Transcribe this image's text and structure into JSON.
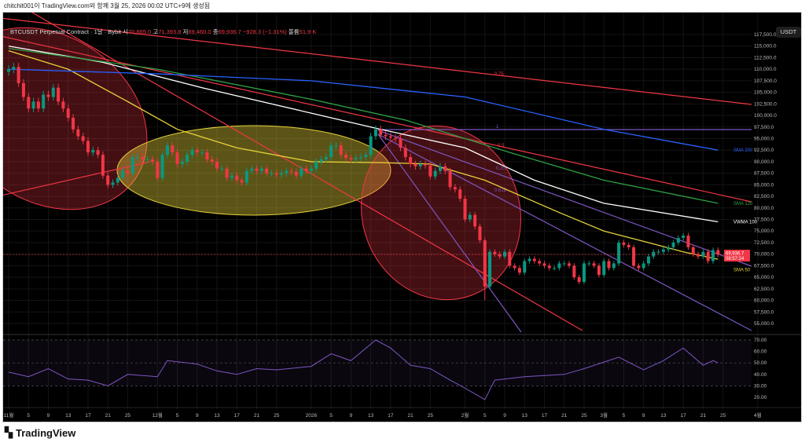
{
  "caption": "chitchit001이 TradingView.com와 함께 3월 25, 2026 00:02 UTC+9에 생성됨",
  "legend": {
    "symbol": "BTCUSDT Perpetual Contract · 1날 · Bybit",
    "open_label": "시",
    "open": "70,865.0",
    "high_label": "고",
    "high": "71,393.8",
    "low_label": "저",
    "low": "69,460.0",
    "close_label": "종",
    "close": "69,936.7",
    "change": "−928.3 (−1.31%)",
    "volume_label": "볼륨",
    "volume": "51.9 K"
  },
  "currency_button": "USDT",
  "last_price": {
    "price": "69,936.7",
    "countdown": "08:57:24"
  },
  "logo": "TradingView",
  "colors": {
    "up": "#089981",
    "down": "#f23645",
    "sma50": "#e6d23a",
    "vwma100": "#ffffff",
    "sma120": "#2ea043",
    "sma200": "#2962ff",
    "rsi": "#7e57c2"
  },
  "chart_data": [
    {
      "type": "candlestick",
      "start_date": "2025-11-01",
      "ylim": [
        52500,
        120000
      ],
      "y_ticks": [
        "117,500.0",
        "115,000.0",
        "112,500.0",
        "110,000.0",
        "107,500.0",
        "105,000.0",
        "102,500.0",
        "100,000.0",
        "97,500.0",
        "95,000.0",
        "92,500.0",
        "90,000.0",
        "87,500.0",
        "85,000.0",
        "82,500.0",
        "80,000.0",
        "77,500.0",
        "75,000.0",
        "72,500.0",
        "70,000.0",
        "67,500.0",
        "65,000.0",
        "62,500.0",
        "60,000.0",
        "57,500.0",
        "55,000.0"
      ],
      "x_ticks": [
        [
          "11월",
          0
        ],
        [
          "5",
          4
        ],
        [
          "9",
          8
        ],
        [
          "13",
          12
        ],
        [
          "17",
          16
        ],
        [
          "21",
          20
        ],
        [
          "25",
          24
        ],
        [
          "12월",
          30
        ],
        [
          "5",
          34
        ],
        [
          "9",
          38
        ],
        [
          "13",
          42
        ],
        [
          "17",
          46
        ],
        [
          "21",
          50
        ],
        [
          "25",
          54
        ],
        [
          "2026",
          61
        ],
        [
          "5",
          65
        ],
        [
          "9",
          69
        ],
        [
          "13",
          73
        ],
        [
          "17",
          77
        ],
        [
          "21",
          81
        ],
        [
          "25",
          85
        ],
        [
          "2월",
          92
        ],
        [
          "5",
          96
        ],
        [
          "9",
          100
        ],
        [
          "13",
          104
        ],
        [
          "17",
          108
        ],
        [
          "21",
          112
        ],
        [
          "25",
          116
        ],
        [
          "3월",
          120
        ],
        [
          "5",
          124
        ],
        [
          "9",
          128
        ],
        [
          "13",
          132
        ],
        [
          "17",
          136
        ],
        [
          "21",
          140
        ],
        [
          "25",
          144
        ],
        [
          "4월",
          151
        ]
      ],
      "closes": [
        110000,
        110500,
        107000,
        104000,
        101500,
        103000,
        101500,
        104500,
        104000,
        106000,
        103000,
        101500,
        99500,
        97000,
        95500,
        94500,
        92000,
        92500,
        91500,
        87000,
        85000,
        85500,
        86500,
        88000,
        87500,
        91000,
        91000,
        90500,
        90500,
        90000,
        86500,
        91500,
        93500,
        92000,
        89500,
        90000,
        91500,
        92500,
        92000,
        92000,
        90500,
        90000,
        88500,
        88500,
        86500,
        87000,
        86000,
        85500,
        88000,
        88500,
        88000,
        88500,
        87500,
        87500,
        87200,
        87500,
        88000,
        87800,
        87000,
        88500,
        88000,
        88500,
        90000,
        90500,
        91000,
        93500,
        93500,
        91500,
        90800,
        90500,
        90800,
        91000,
        91500,
        95500,
        97000,
        95800,
        95500,
        95200,
        95000,
        93000,
        91000,
        89500,
        89000,
        89500,
        89200,
        86800,
        88000,
        89000,
        88000,
        84500,
        84000,
        82000,
        77500,
        78500,
        76000,
        73000,
        63000,
        70500,
        70000,
        69500,
        70500,
        67500,
        67000,
        66000,
        68500,
        69000,
        68500,
        68000,
        67500,
        67000,
        67000,
        68000,
        68000,
        67500,
        65000,
        64000,
        68000,
        68000,
        67500,
        65500,
        68500,
        67000,
        68000,
        72500,
        72000,
        71500,
        67500,
        67000,
        68000,
        69500,
        70500,
        70500,
        71000,
        71500,
        72500,
        73500,
        74000,
        71500,
        70000,
        69500,
        70500,
        68500,
        70865,
        69936.7
      ],
      "moving_averages": [
        {
          "name": "SMA 50",
          "color": "#e6d23a",
          "points": [
            [
              0,
              114000
            ],
            [
              12,
              110000
            ],
            [
              24,
              103000
            ],
            [
              34,
              97000
            ],
            [
              46,
              93000
            ],
            [
              61,
              90000
            ],
            [
              75,
              89800
            ],
            [
              85,
              89500
            ],
            [
              96,
              86000
            ],
            [
              111,
              79000
            ],
            [
              120,
              75000
            ],
            [
              129,
              72500
            ],
            [
              136,
              70500
            ],
            [
              143,
              68900
            ]
          ]
        },
        {
          "name": "VWMA 100",
          "color": "#ffffff",
          "points": [
            [
              0,
              115000
            ],
            [
              19,
              111500
            ],
            [
              39,
              106000
            ],
            [
              61,
              100500
            ],
            [
              75,
              97000
            ],
            [
              92,
              93000
            ],
            [
              106,
              86000
            ],
            [
              120,
              81000
            ],
            [
              143,
              77000
            ]
          ]
        },
        {
          "name": "SMA 120",
          "color": "#2ea043",
          "points": [
            [
              0,
              114500
            ],
            [
              30,
              110000
            ],
            [
              61,
              103500
            ],
            [
              80,
              99000
            ],
            [
              101,
              92000
            ],
            [
              120,
              86000
            ],
            [
              143,
              81000
            ]
          ]
        },
        {
          "name": "SMA 200",
          "color": "#2962ff",
          "points": [
            [
              0,
              110000
            ],
            [
              30,
              109000
            ],
            [
              61,
              107500
            ],
            [
              92,
              104000
            ],
            [
              120,
              97000
            ],
            [
              143,
              92500
            ]
          ]
        }
      ],
      "fib_labels": [
        "0.75",
        "1",
        "0.5",
        "0.25",
        "0.618"
      ]
    },
    {
      "type": "line",
      "ylim": [
        15,
        75
      ],
      "y_ticks": [
        "70.00",
        "60.00",
        "50.00",
        "40.00",
        "30.00",
        "20.00"
      ],
      "bands": [
        30,
        50,
        70
      ],
      "rsi": [
        [
          0,
          42
        ],
        [
          4,
          38
        ],
        [
          8,
          45
        ],
        [
          12,
          36
        ],
        [
          16,
          35
        ],
        [
          20,
          30
        ],
        [
          24,
          40
        ],
        [
          30,
          38
        ],
        [
          32,
          52
        ],
        [
          38,
          49
        ],
        [
          42,
          43
        ],
        [
          46,
          40
        ],
        [
          50,
          45
        ],
        [
          54,
          44
        ],
        [
          61,
          47
        ],
        [
          65,
          58
        ],
        [
          69,
          52
        ],
        [
          74,
          70
        ],
        [
          77,
          63
        ],
        [
          81,
          48
        ],
        [
          85,
          45
        ],
        [
          89,
          35
        ],
        [
          92,
          28
        ],
        [
          96,
          18
        ],
        [
          98,
          35
        ],
        [
          104,
          38
        ],
        [
          112,
          40
        ],
        [
          116,
          45
        ],
        [
          123,
          55
        ],
        [
          128,
          44
        ],
        [
          132,
          52
        ],
        [
          136,
          63
        ],
        [
          140,
          48
        ],
        [
          142,
          52
        ],
        [
          143,
          50
        ]
      ]
    }
  ]
}
